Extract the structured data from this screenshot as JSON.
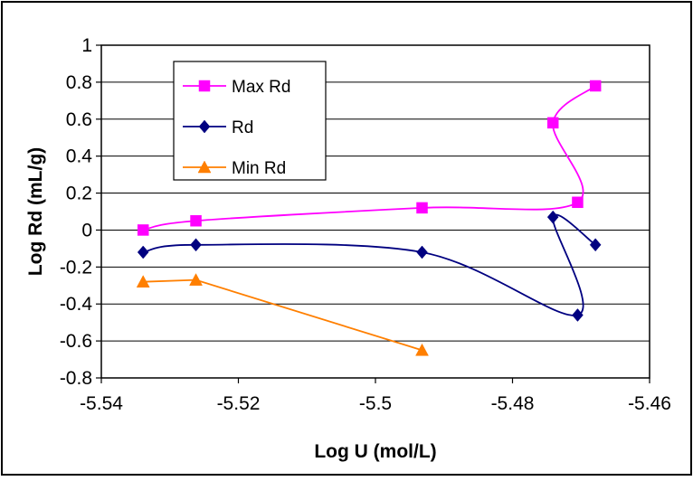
{
  "chart_data": {
    "type": "scatter",
    "title": "",
    "xlabel": "Log U (mol/L)",
    "ylabel": "Log Rd (mL/g)",
    "xlim": [
      -5.54,
      -5.46
    ],
    "ylim": [
      -0.8,
      1.0
    ],
    "xticks": [
      -5.54,
      -5.52,
      -5.5,
      -5.48,
      -5.46
    ],
    "yticks": [
      -0.8,
      -0.6,
      -0.4,
      -0.2,
      0,
      0.2,
      0.4,
      0.6,
      0.8,
      1
    ],
    "x_tick_labels": [
      "-5.54",
      "-5.52",
      "-5.5",
      "-5.48",
      "-5.46"
    ],
    "y_tick_labels": [
      "-0.8",
      "-0.6",
      "-0.4",
      "-0.2",
      "0",
      "0.2",
      "0.4",
      "0.6",
      "0.8",
      "1"
    ],
    "grid": "horizontal",
    "legend_position": "top-left",
    "series": [
      {
        "name": "Max Rd",
        "color": "#FF00FF",
        "marker": "square",
        "line": "smooth",
        "points": [
          {
            "x": -5.5339,
            "y": 0.0
          },
          {
            "x": -5.5262,
            "y": 0.05
          },
          {
            "x": -5.4932,
            "y": 0.12
          },
          {
            "x": -5.4705,
            "y": 0.15
          },
          {
            "x": -5.4741,
            "y": 0.58
          },
          {
            "x": -5.4679,
            "y": 0.78
          }
        ]
      },
      {
        "name": "Rd",
        "color": "#000080",
        "marker": "diamond",
        "line": "smooth",
        "points": [
          {
            "x": -5.5339,
            "y": -0.12
          },
          {
            "x": -5.5262,
            "y": -0.08
          },
          {
            "x": -5.4932,
            "y": -0.12
          },
          {
            "x": -5.4705,
            "y": -0.46
          },
          {
            "x": -5.4741,
            "y": 0.07
          },
          {
            "x": -5.4679,
            "y": -0.08
          }
        ]
      },
      {
        "name": "Min Rd",
        "color": "#FF7F00",
        "marker": "triangle",
        "line": "straight",
        "points": [
          {
            "x": -5.5339,
            "y": -0.28
          },
          {
            "x": -5.5262,
            "y": -0.27
          },
          {
            "x": -5.4932,
            "y": -0.65
          }
        ]
      }
    ]
  }
}
